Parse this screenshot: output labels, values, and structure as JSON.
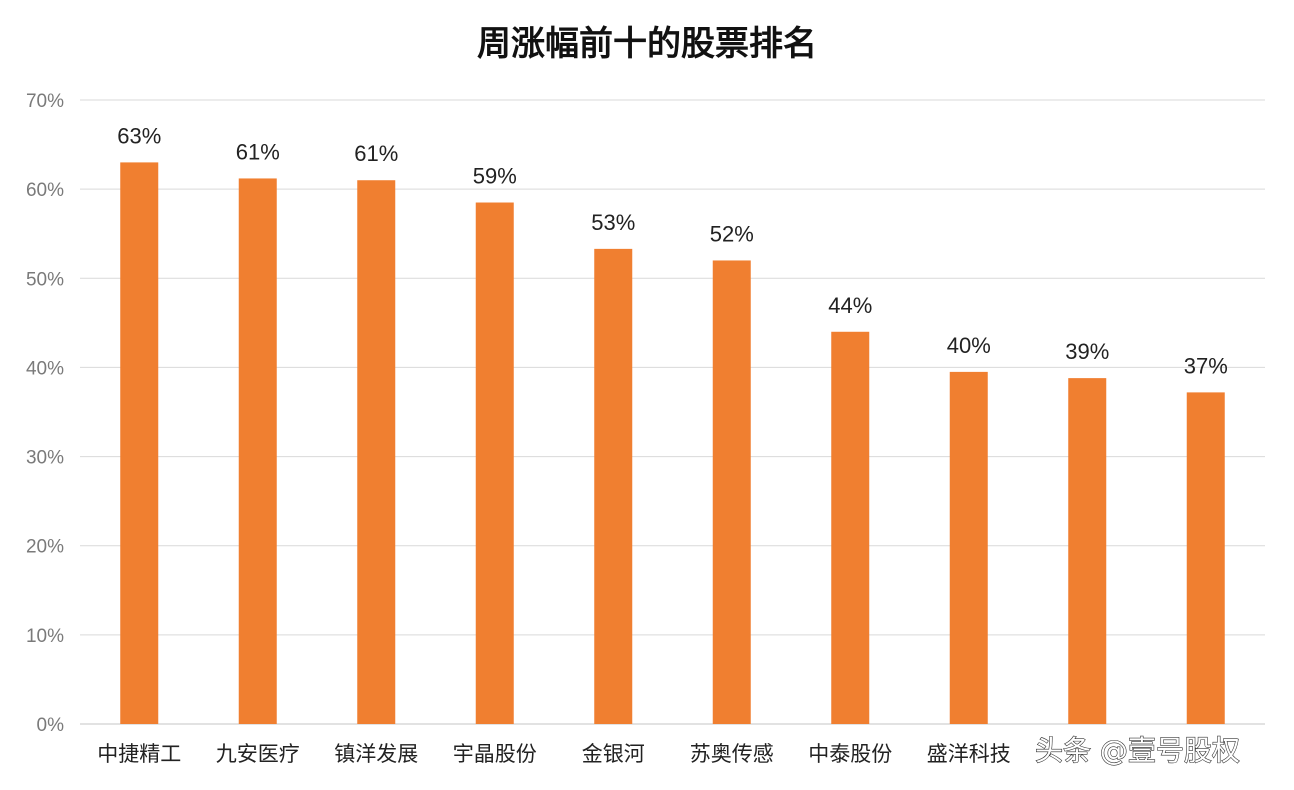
{
  "watermark": "头条 @壹号股权",
  "chart_data": {
    "type": "bar",
    "title": "周涨幅前十的股票排名",
    "xlabel": "",
    "ylabel": "",
    "ylim": [
      0,
      70
    ],
    "yticks": [
      "0%",
      "10%",
      "20%",
      "30%",
      "40%",
      "50%",
      "60%",
      "70%"
    ],
    "grid": true,
    "legend": "none",
    "categories": [
      "中捷精工",
      "九安医疗",
      "镇洋发展",
      "宇晶股份",
      "金银河",
      "苏奥传感",
      "中泰股份",
      "盛洋科技",
      "",
      ""
    ],
    "values": [
      63,
      61.2,
      61,
      58.5,
      53.3,
      52,
      44,
      39.5,
      38.8,
      37.2
    ],
    "data_labels": [
      "63%",
      "61%",
      "61%",
      "59%",
      "53%",
      "52%",
      "44%",
      "40%",
      "39%",
      "37%"
    ],
    "bar_color": "#f07f30",
    "grid_color": "#d9d9d9"
  }
}
